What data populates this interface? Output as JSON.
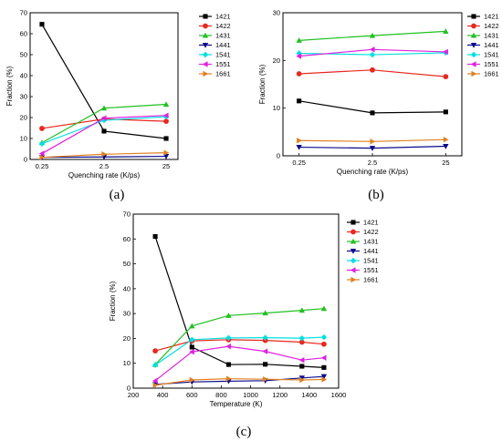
{
  "chart_data": [
    {
      "type": "line",
      "panel_label": "(a)",
      "xlabel": "Quenching rate (K/ps)",
      "ylabel": "Fraction (%)",
      "categories": [
        "0.25",
        "2.5",
        "25"
      ],
      "ylim": [
        0,
        70
      ],
      "yticks": [
        "0",
        "10",
        "20",
        "30",
        "40",
        "50",
        "60",
        "70"
      ],
      "legend_position": "right",
      "series": [
        {
          "name": "1421",
          "color": "#000000",
          "marker": "square",
          "values": [
            64.5,
            13.5,
            10.0
          ]
        },
        {
          "name": "1422",
          "color": "#e8281e",
          "marker": "circle",
          "values": [
            14.8,
            19.3,
            18.2
          ]
        },
        {
          "name": "1431",
          "color": "#21c021",
          "marker": "triangle-up",
          "values": [
            8.0,
            24.5,
            26.3
          ]
        },
        {
          "name": "1441",
          "color": "#0a0a8c",
          "marker": "triangle-down",
          "values": [
            1.0,
            1.2,
            1.5
          ]
        },
        {
          "name": "1541",
          "color": "#00e0e0",
          "marker": "diamond",
          "values": [
            7.5,
            18.7,
            20.4
          ]
        },
        {
          "name": "1551",
          "color": "#e020e0",
          "marker": "triangle-left",
          "values": [
            2.8,
            19.7,
            21.0
          ]
        },
        {
          "name": "1661",
          "color": "#e08020",
          "marker": "triangle-right",
          "values": [
            1.0,
            2.5,
            3.2
          ]
        }
      ]
    },
    {
      "type": "line",
      "panel_label": "(b)",
      "xlabel": "Quenching rate (K/ps)",
      "ylabel": "Fraction (%)",
      "categories": [
        "0.25",
        "2.5",
        "25"
      ],
      "ylim": [
        0,
        30
      ],
      "yticks": [
        "0",
        "10",
        "20",
        "30"
      ],
      "legend_position": "right",
      "series": [
        {
          "name": "1421",
          "color": "#000000",
          "marker": "square",
          "values": [
            11.5,
            9.0,
            9.2
          ]
        },
        {
          "name": "1422",
          "color": "#e8281e",
          "marker": "circle",
          "values": [
            17.2,
            18.0,
            16.6
          ]
        },
        {
          "name": "1431",
          "color": "#21c021",
          "marker": "triangle-up",
          "values": [
            24.2,
            25.2,
            26.1
          ]
        },
        {
          "name": "1441",
          "color": "#0a0a8c",
          "marker": "triangle-down",
          "values": [
            1.8,
            1.6,
            2.0
          ]
        },
        {
          "name": "1541",
          "color": "#00e0e0",
          "marker": "diamond",
          "values": [
            21.5,
            21.2,
            21.6
          ]
        },
        {
          "name": "1551",
          "color": "#e020e0",
          "marker": "triangle-left",
          "values": [
            20.9,
            22.3,
            21.8
          ]
        },
        {
          "name": "1661",
          "color": "#e08020",
          "marker": "triangle-right",
          "values": [
            3.2,
            3.0,
            3.4
          ]
        }
      ]
    },
    {
      "type": "line",
      "panel_label": "(c)",
      "xlabel": "Temperature (K)",
      "ylabel": "Fraction (%)",
      "xlim": [
        200,
        1600
      ],
      "xticks": [
        "200",
        "400",
        "600",
        "800",
        "1000",
        "1200",
        "1400",
        "1600"
      ],
      "ylim": [
        0,
        70
      ],
      "yticks": [
        "0",
        "10",
        "20",
        "30",
        "40",
        "50",
        "60",
        "70"
      ],
      "legend_position": "right",
      "x": [
        350,
        600,
        850,
        1100,
        1350,
        1500
      ],
      "series": [
        {
          "name": "1421",
          "color": "#000000",
          "marker": "square",
          "values": [
            61.0,
            16.5,
            9.5,
            9.6,
            8.8,
            8.3
          ]
        },
        {
          "name": "1422",
          "color": "#e8281e",
          "marker": "circle",
          "values": [
            15.0,
            19.0,
            19.5,
            19.2,
            18.5,
            17.7
          ]
        },
        {
          "name": "1431",
          "color": "#21c021",
          "marker": "triangle-up",
          "values": [
            9.5,
            25.0,
            29.2,
            30.2,
            31.3,
            32.0
          ]
        },
        {
          "name": "1441",
          "color": "#0a0a8c",
          "marker": "triangle-down",
          "values": [
            1.5,
            2.5,
            2.8,
            3.0,
            4.1,
            4.7
          ]
        },
        {
          "name": "1541",
          "color": "#00e0e0",
          "marker": "diamond",
          "values": [
            9.3,
            19.5,
            20.2,
            20.3,
            20.1,
            20.5
          ]
        },
        {
          "name": "1551",
          "color": "#e020e0",
          "marker": "triangle-left",
          "values": [
            3.0,
            14.6,
            16.8,
            14.8,
            11.3,
            12.2
          ]
        },
        {
          "name": "1661",
          "color": "#e08020",
          "marker": "triangle-right",
          "values": [
            1.2,
            3.3,
            3.8,
            3.6,
            3.3,
            3.5
          ]
        }
      ]
    }
  ]
}
